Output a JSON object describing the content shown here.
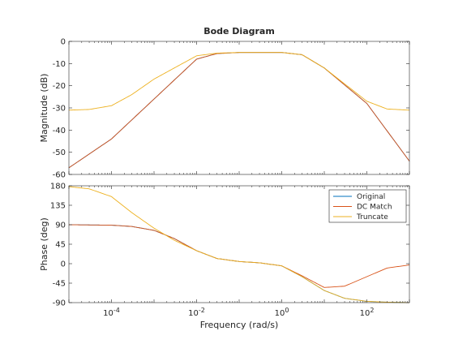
{
  "chart_data": {
    "type": "line",
    "title": "Bode Diagram",
    "xlabel": "Frequency  (rad/s)",
    "xscale": "log",
    "xlim": [
      1e-05,
      1000
    ],
    "x_tick_labels": [
      "10^-4",
      "10^-2",
      "10^0",
      "10^2"
    ],
    "grid": false,
    "colors": {
      "Original": "#0072bd",
      "DC Match": "#d95319",
      "Truncate": "#edb120",
      "axes": "#262626"
    },
    "panels": [
      {
        "name": "magnitude",
        "ylabel": "Magnitude (dB)",
        "ylim": [
          -60,
          0
        ],
        "yticks": [
          "0",
          "-10",
          "-20",
          "-30",
          "-40",
          "-50",
          "-60"
        ],
        "series": [
          {
            "name": "Original",
            "x": [
              1e-05,
              0.0001,
              0.001,
              0.01,
              0.03,
              0.1,
              1,
              3,
              10,
              100.0,
              1000.0
            ],
            "y": [
              -57,
              -44,
              -26,
              -8,
              -5.5,
              -5,
              -5,
              -6,
              -12,
              -28,
              -54
            ]
          },
          {
            "name": "DC Match",
            "x": [
              1e-05,
              0.0001,
              0.001,
              0.01,
              0.03,
              0.1,
              1,
              3,
              10,
              100.0,
              1000.0
            ],
            "y": [
              -57,
              -44,
              -26,
              -8,
              -5.5,
              -5,
              -5,
              -6,
              -12,
              -28,
              -54
            ]
          },
          {
            "name": "Truncate",
            "x": [
              1e-05,
              3e-05,
              0.0001,
              0.0003,
              0.001,
              0.01,
              0.03,
              0.1,
              1,
              3,
              10,
              100.0,
              300.0,
              1000.0
            ],
            "y": [
              -31,
              -30.7,
              -29,
              -24,
              -17,
              -6.5,
              -5.3,
              -5,
              -5,
              -6,
              -12,
              -27,
              -30.5,
              -31
            ]
          }
        ]
      },
      {
        "name": "phase",
        "ylabel": "Phase (deg)",
        "ylim": [
          -90,
          180
        ],
        "yticks": [
          "180",
          "135",
          "90",
          "45",
          "0",
          "-45",
          "-90"
        ],
        "legend": {
          "position": "top-right",
          "entries": [
            "Original",
            "DC Match",
            "Truncate"
          ]
        },
        "series": [
          {
            "name": "Original",
            "x": [
              1e-05,
              0.0001,
              0.0003,
              0.001,
              0.003,
              0.01,
              0.03,
              0.1,
              0.3,
              1,
              3,
              10,
              30,
              100.0,
              300.0,
              1000.0
            ],
            "y": [
              90,
              89,
              86,
              77,
              58,
              30,
              12,
              5,
              2,
              -5,
              -30,
              -62,
              -80,
              -87,
              -89,
              -90
            ]
          },
          {
            "name": "DC Match",
            "x": [
              1e-05,
              0.0001,
              0.0003,
              0.001,
              0.003,
              0.01,
              0.03,
              0.1,
              0.3,
              1,
              3,
              10,
              30,
              100.0,
              300.0,
              1000.0
            ],
            "y": [
              90,
              89,
              86,
              77,
              58,
              30,
              12,
              5,
              2,
              -5,
              -28,
              -55,
              -52,
              -30,
              -10,
              -3
            ]
          },
          {
            "name": "Truncate",
            "x": [
              1e-05,
              3e-05,
              0.0001,
              0.0003,
              0.001,
              0.003,
              0.01,
              0.03,
              0.1,
              0.3,
              1,
              3,
              10,
              30,
              100.0,
              300.0,
              1000.0
            ],
            "y": [
              178,
              173,
              155,
              118,
              82,
              54,
              30,
              12,
              5,
              2,
              -5,
              -30,
              -62,
              -80,
              -87,
              -89,
              -90
            ]
          }
        ]
      }
    ]
  }
}
